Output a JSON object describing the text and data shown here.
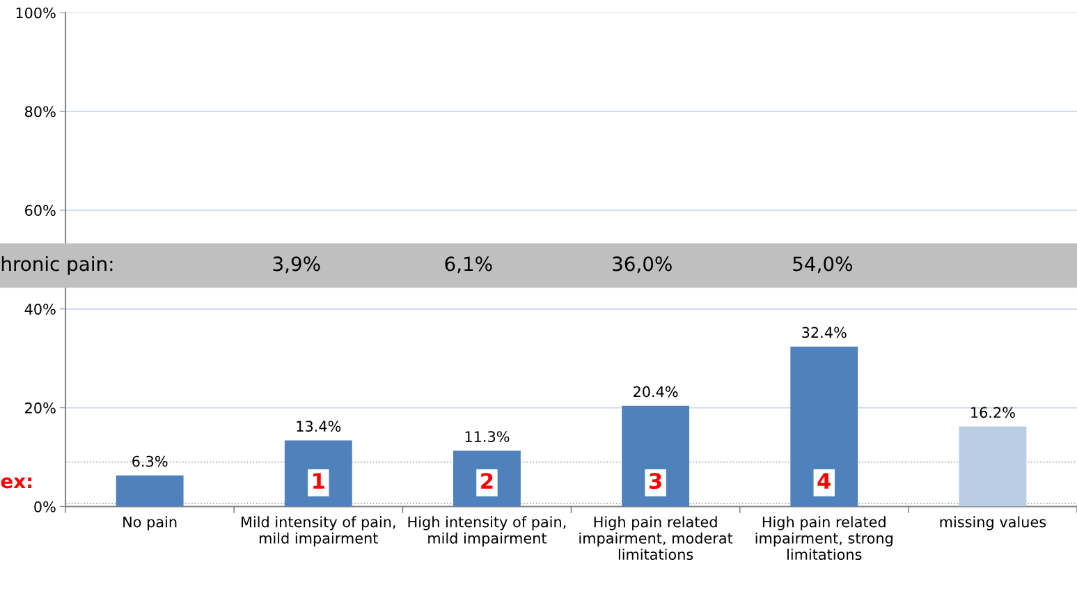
{
  "chart_data": {
    "type": "bar",
    "categories": [
      "No pain",
      "Mild intensity of pain,\nmild impairment",
      "High intensity of pain,\nmild impairment",
      "High pain related\nimpairment, moderat\nlimitations",
      "High pain related\nimpairment, strong\nlimitations",
      "missing values"
    ],
    "values": [
      6.3,
      13.4,
      11.3,
      20.4,
      32.4,
      16.2
    ],
    "colors": [
      "#4f81bd",
      "#4f81bd",
      "#4f81bd",
      "#4f81bd",
      "#4f81bd",
      "#b9cde5"
    ],
    "value_labels": [
      "6.3%",
      "13.4%",
      "11.3%",
      "20.4%",
      "32.4%",
      "16.2%"
    ],
    "ylim": [
      0,
      100
    ],
    "yticks": [
      {
        "value": 0,
        "label": "0%"
      },
      {
        "value": 20,
        "label": "20%"
      },
      {
        "value": 40,
        "label": "40%"
      },
      {
        "value": 60,
        "label": "60%"
      },
      {
        "value": 80,
        "label": "80%"
      },
      {
        "value": 100,
        "label": "100%"
      }
    ],
    "grid": "y",
    "bands": [
      {
        "axis": "y",
        "from": 44.4,
        "to": 53.2,
        "color": "#bfbfbf"
      }
    ],
    "ref_lines": [
      {
        "axis": "y",
        "value": 9,
        "line_style": "dotted",
        "color": "#a6a6a6"
      },
      {
        "axis": "y",
        "value": 0.6,
        "line_style": "dotted",
        "color": "#a6a6a6"
      }
    ],
    "annotations": [
      "hronic pain:",
      "3,9%",
      "6,1%",
      "36,0%",
      "54,0%",
      "ex:",
      "1",
      "2",
      "3",
      "4"
    ]
  }
}
